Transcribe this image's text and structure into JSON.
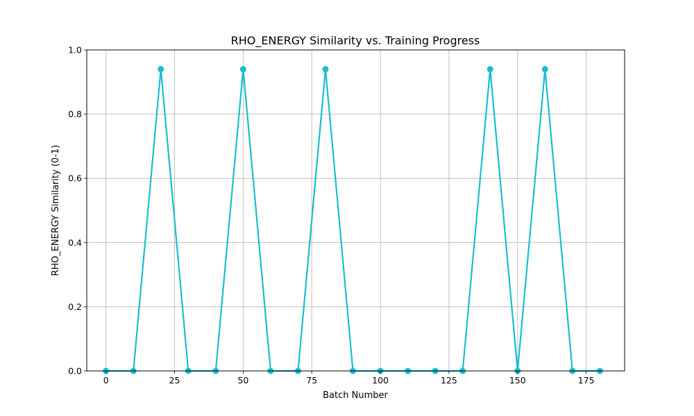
{
  "chart_data": {
    "type": "line",
    "title": "RHO_ENERGY Similarity vs. Training Progress",
    "xlabel": "Batch Number",
    "ylabel": "RHO_ENERGY Similarity (0-1)",
    "xlim": [
      -7,
      189
    ],
    "ylim": [
      0,
      1
    ],
    "xticks": [
      0,
      25,
      50,
      75,
      100,
      125,
      150,
      175
    ],
    "yticks": [
      0.0,
      0.2,
      0.4,
      0.6,
      0.8,
      1.0
    ],
    "ytick_labels": [
      "0.0",
      "0.2",
      "0.4",
      "0.6",
      "0.8",
      "1.0"
    ],
    "grid": true,
    "series": [
      {
        "color": "#17becf",
        "marker": "circle",
        "x": [
          0,
          10,
          20,
          30,
          40,
          50,
          60,
          70,
          80,
          90,
          100,
          110,
          120,
          130,
          140,
          150,
          160,
          170,
          180
        ],
        "y": [
          0,
          0,
          0.94,
          0,
          0,
          0.94,
          0,
          0,
          0.94,
          0,
          0,
          0,
          0,
          0,
          0.94,
          0,
          0.94,
          0,
          0
        ]
      }
    ]
  }
}
